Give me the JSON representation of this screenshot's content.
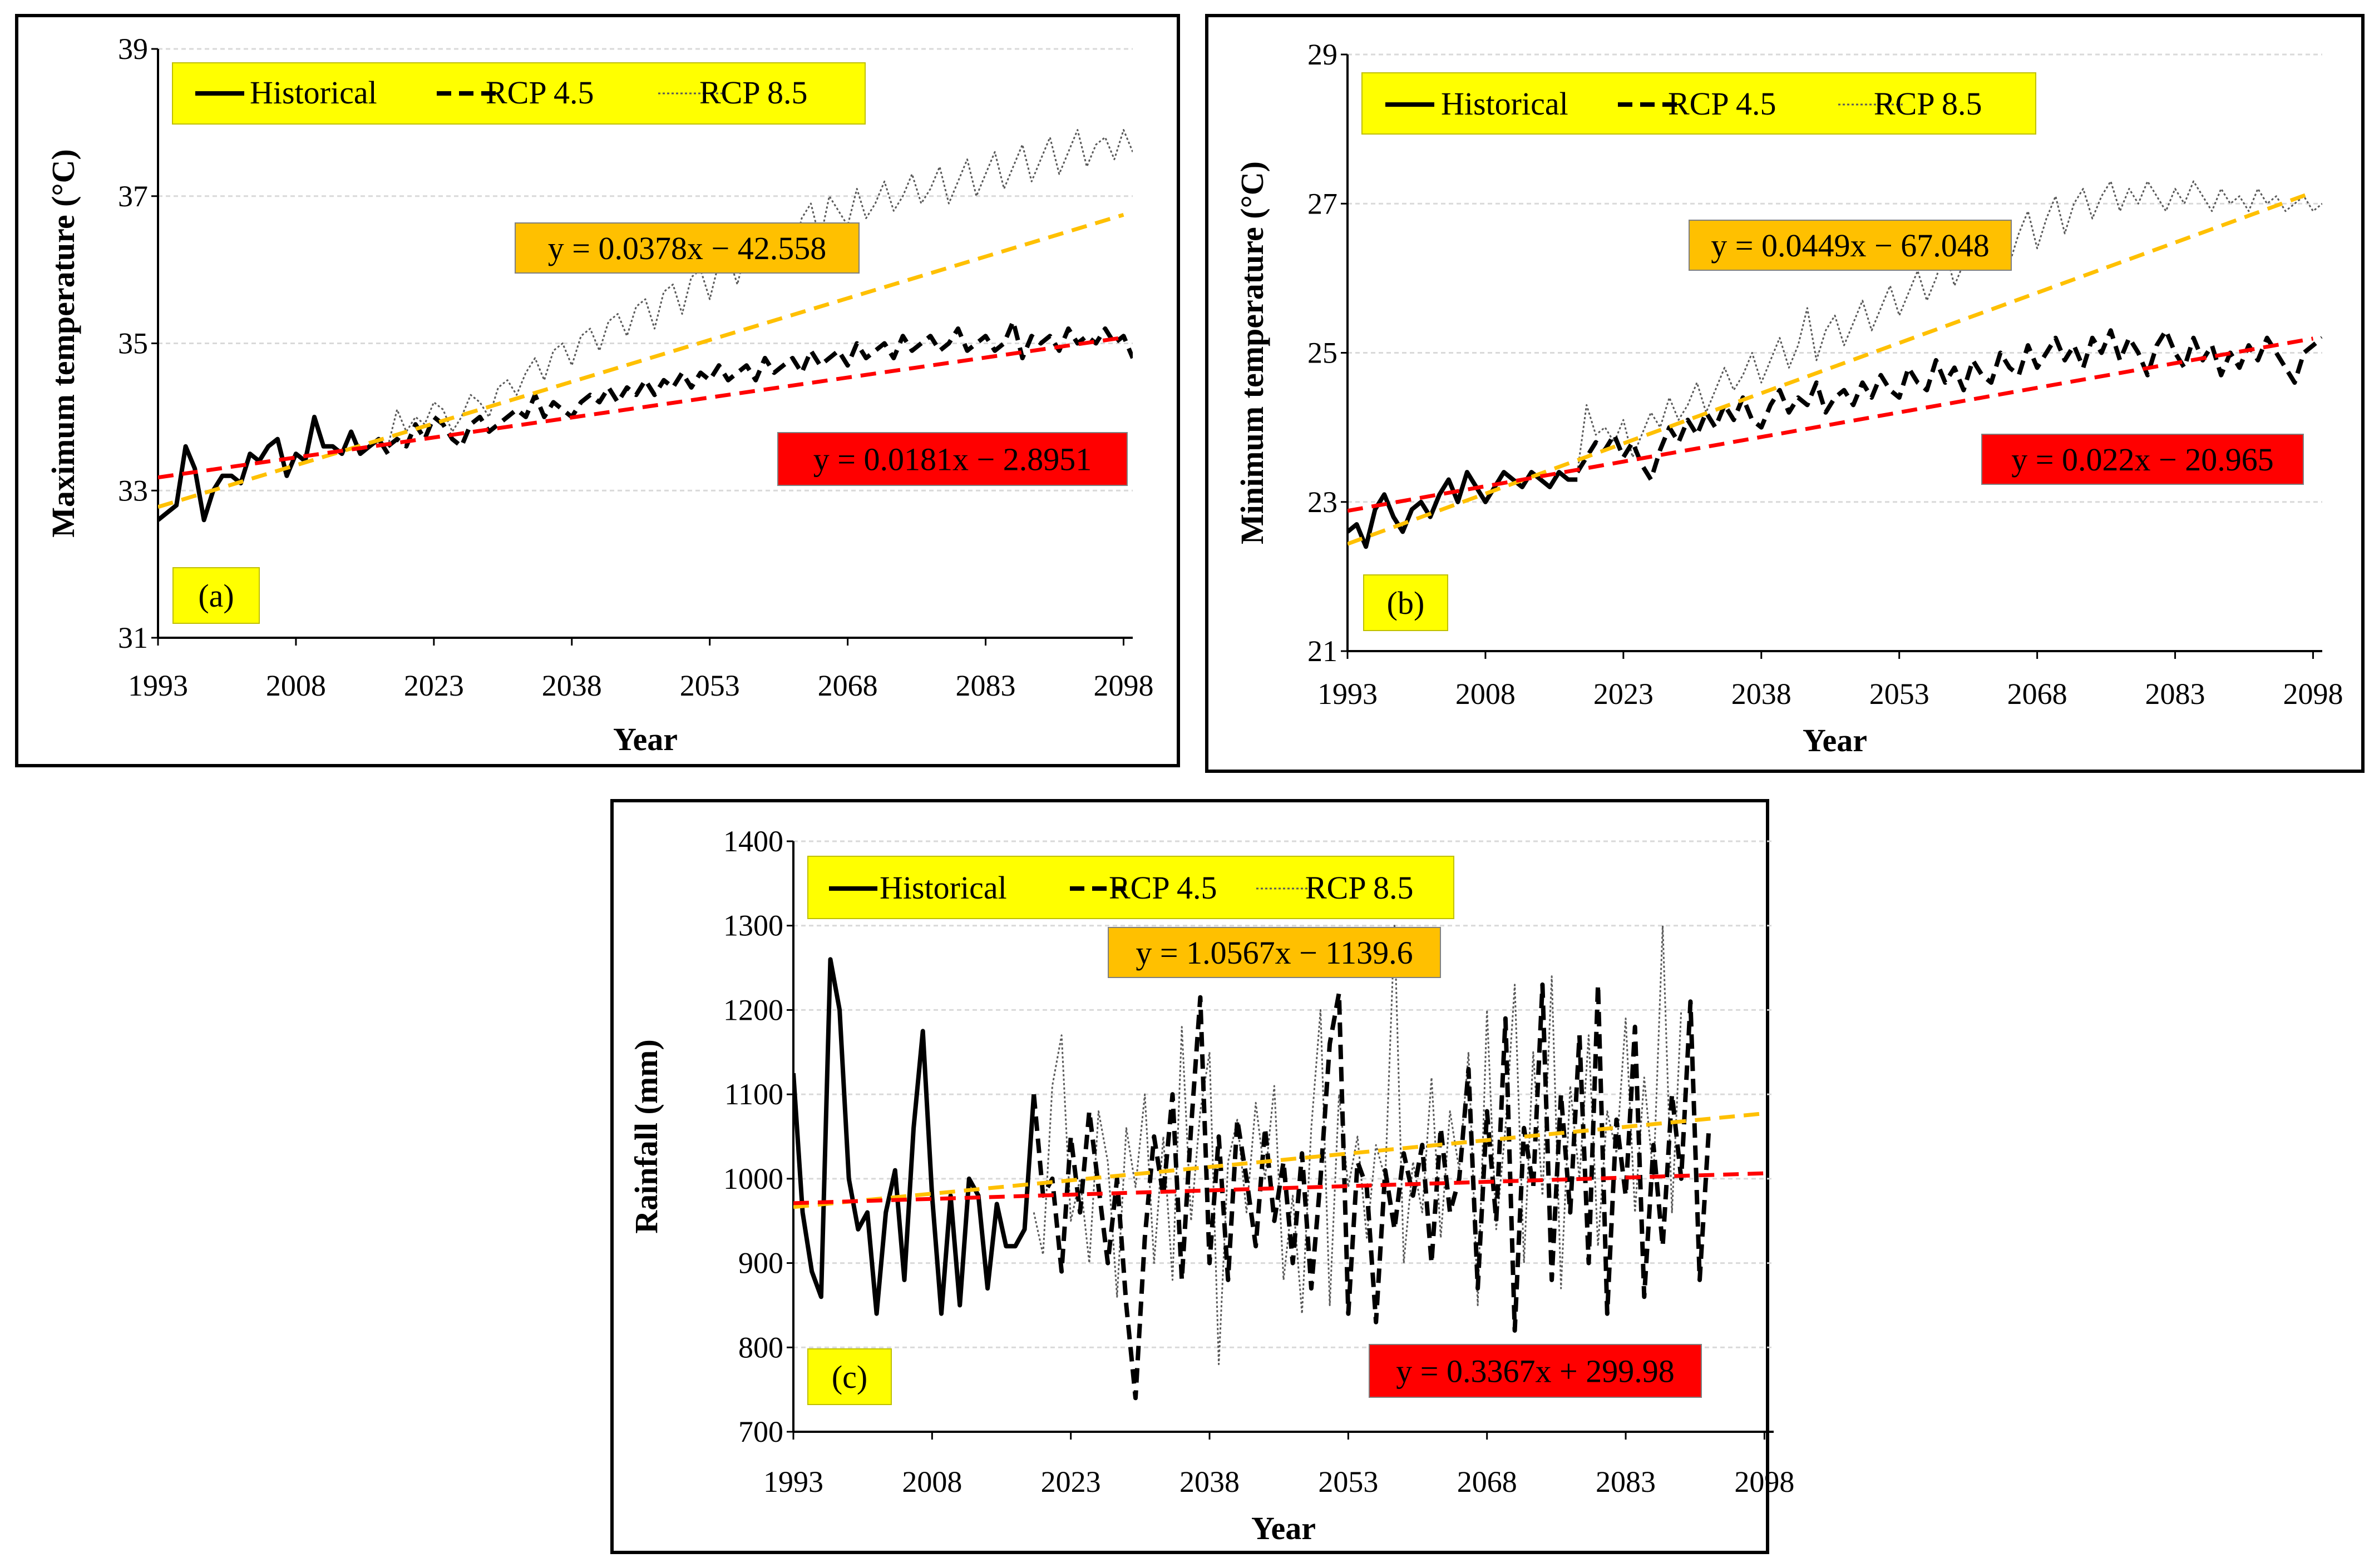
{
  "colors": {
    "legend_bg": "#ffff00",
    "eq_orange_bg": "#ffc000",
    "eq_red_bg": "#ff0000",
    "trend_orange": "#ffc000",
    "trend_red": "#ff0000",
    "grid": "#d9d9d9"
  },
  "legend": {
    "historical": "Historical",
    "rcp45": "RCP 4.5",
    "rcp85": "RCP 8.5"
  },
  "chart_data": [
    {
      "id": "a",
      "type": "line",
      "panel_label": "(a)",
      "xlabel": "Year",
      "ylabel": "Maximum temperature (°C)",
      "xlim": [
        1993,
        2099
      ],
      "ylim": [
        31,
        39
      ],
      "xticks": [
        "1993",
        "2008",
        "2023",
        "2038",
        "2053",
        "2068",
        "2083",
        "2098"
      ],
      "yticks": [
        "31",
        "33",
        "35",
        "37",
        "39"
      ],
      "equation_orange": "y = 0.0378x − 42.558",
      "equation_red": "y = 0.0181x − 2.8951",
      "trend_orange": {
        "slope": 0.0378,
        "intercept": -42.558
      },
      "trend_red": {
        "slope": 0.0181,
        "intercept": -2.8951
      },
      "series": [
        {
          "name": "Historical",
          "start_year": 1993,
          "values": [
            32.6,
            32.7,
            32.8,
            33.6,
            33.3,
            32.6,
            33.0,
            33.2,
            33.2,
            33.1,
            33.5,
            33.4,
            33.6,
            33.7,
            33.2,
            33.5,
            33.4,
            34.0,
            33.6,
            33.6,
            33.5,
            33.8,
            33.5,
            33.6,
            33.7,
            33.5
          ]
        },
        {
          "name": "RCP 4.5",
          "start_year": 2018,
          "values": [
            33.6,
            33.7,
            33.6,
            33.9,
            33.7,
            34.0,
            33.9,
            33.7,
            33.6,
            33.9,
            34.0,
            33.8,
            33.9,
            34.0,
            34.1,
            34.0,
            34.3,
            34.0,
            34.2,
            34.1,
            34.0,
            34.2,
            34.3,
            34.2,
            34.4,
            34.2,
            34.4,
            34.3,
            34.5,
            34.3,
            34.5,
            34.4,
            34.6,
            34.4,
            34.6,
            34.5,
            34.7,
            34.5,
            34.6,
            34.7,
            34.5,
            34.8,
            34.6,
            34.7,
            34.8,
            34.6,
            34.9,
            34.7,
            34.8,
            34.9,
            34.7,
            35.0,
            34.8,
            34.9,
            35.0,
            34.8,
            35.1,
            34.9,
            35.0,
            35.1,
            34.9,
            35.0,
            35.2,
            34.9,
            35.0,
            35.1,
            34.9,
            35.0,
            35.3,
            34.8,
            35.1,
            35.0,
            35.1,
            34.9,
            35.2,
            35.0,
            35.1,
            35.0,
            35.2,
            35.0,
            35.1,
            34.8
          ]
        },
        {
          "name": "RCP 8.5",
          "start_year": 2018,
          "values": [
            33.6,
            34.1,
            33.8,
            34.0,
            33.9,
            34.2,
            34.1,
            33.8,
            34.0,
            34.3,
            34.2,
            34.0,
            34.4,
            34.5,
            34.3,
            34.6,
            34.8,
            34.5,
            34.9,
            35.0,
            34.7,
            35.1,
            35.2,
            34.9,
            35.3,
            35.4,
            35.1,
            35.5,
            35.6,
            35.2,
            35.7,
            35.8,
            35.4,
            35.9,
            36.0,
            35.6,
            36.1,
            36.2,
            35.8,
            36.3,
            36.4,
            36.0,
            36.5,
            36.6,
            36.2,
            36.7,
            36.9,
            36.4,
            37.0,
            36.8,
            36.6,
            37.1,
            36.7,
            36.9,
            37.2,
            36.8,
            37.0,
            37.3,
            36.9,
            37.1,
            37.4,
            36.9,
            37.2,
            37.5,
            37.0,
            37.3,
            37.6,
            37.1,
            37.4,
            37.7,
            37.2,
            37.5,
            37.8,
            37.3,
            37.6,
            37.9,
            37.4,
            37.7,
            37.8,
            37.5,
            37.9,
            37.6
          ]
        }
      ]
    },
    {
      "id": "b",
      "type": "line",
      "panel_label": "(b)",
      "xlabel": "Year",
      "ylabel": "Minimum temperature (°C)",
      "xlim": [
        1993,
        2099
      ],
      "ylim": [
        21,
        29
      ],
      "xticks": [
        "1993",
        "2008",
        "2023",
        "2038",
        "2053",
        "2068",
        "2083",
        "2098"
      ],
      "yticks": [
        "21",
        "23",
        "25",
        "27",
        "29"
      ],
      "equation_orange": "y = 0.0449x − 67.048",
      "equation_red": "y = 0.022x − 20.965",
      "trend_orange": {
        "slope": 0.0449,
        "intercept": -67.048
      },
      "trend_red": {
        "slope": 0.022,
        "intercept": -20.965
      },
      "series": [
        {
          "name": "Historical",
          "start_year": 1993,
          "values": [
            22.6,
            22.7,
            22.4,
            22.9,
            23.1,
            22.8,
            22.6,
            22.9,
            23.0,
            22.8,
            23.1,
            23.3,
            23.0,
            23.4,
            23.2,
            23.0,
            23.2,
            23.4,
            23.3,
            23.2,
            23.4,
            23.3,
            23.2,
            23.4,
            23.3,
            23.3
          ]
        },
        {
          "name": "RCP 4.5",
          "start_year": 2018,
          "values": [
            23.4,
            23.6,
            23.8,
            23.7,
            23.9,
            23.6,
            23.8,
            23.5,
            23.3,
            23.7,
            24.0,
            23.8,
            24.1,
            23.9,
            24.2,
            24.0,
            24.3,
            24.1,
            24.4,
            24.1,
            24.0,
            24.3,
            24.5,
            24.2,
            24.4,
            24.3,
            24.6,
            24.2,
            24.4,
            24.5,
            24.3,
            24.6,
            24.4,
            24.7,
            24.5,
            24.4,
            24.8,
            24.6,
            24.5,
            24.9,
            24.6,
            24.8,
            24.5,
            24.9,
            24.7,
            24.6,
            25.0,
            24.8,
            24.7,
            25.1,
            24.8,
            25.0,
            25.2,
            24.9,
            25.1,
            24.8,
            25.2,
            25.0,
            25.3,
            24.9,
            25.2,
            25.0,
            24.7,
            25.1,
            25.3,
            25.0,
            24.8,
            25.2,
            24.9,
            25.1,
            24.7,
            25.0,
            24.8,
            25.1,
            24.9,
            25.2,
            25.0,
            24.8,
            24.6,
            25.0,
            25.1,
            25.2
          ]
        },
        {
          "name": "RCP 8.5",
          "start_year": 2018,
          "values": [
            23.4,
            24.3,
            23.9,
            24.0,
            23.8,
            24.1,
            23.6,
            23.9,
            24.2,
            24.0,
            24.4,
            24.1,
            24.3,
            24.6,
            24.2,
            24.5,
            24.8,
            24.5,
            24.7,
            25.0,
            24.6,
            24.9,
            25.2,
            24.8,
            25.1,
            25.6,
            24.9,
            25.3,
            25.5,
            25.1,
            25.4,
            25.7,
            25.3,
            25.6,
            25.9,
            25.5,
            25.8,
            26.1,
            25.7,
            26.0,
            26.4,
            25.9,
            26.2,
            26.5,
            26.1,
            26.4,
            26.7,
            26.2,
            26.6,
            26.9,
            26.4,
            26.8,
            27.1,
            26.6,
            27.0,
            27.2,
            26.8,
            27.1,
            27.3,
            26.9,
            27.2,
            27.0,
            27.3,
            27.1,
            26.9,
            27.2,
            27.0,
            27.3,
            27.1,
            26.9,
            27.2,
            27.0,
            27.1,
            26.9,
            27.2,
            27.0,
            27.1,
            26.9,
            27.0,
            27.1,
            26.9,
            27.0
          ]
        }
      ]
    },
    {
      "id": "c",
      "type": "line",
      "panel_label": "(c)",
      "xlabel": "Year",
      "ylabel": "Rainfall (mm)",
      "xlim": [
        1993,
        2099
      ],
      "ylim": [
        700,
        1400
      ],
      "xticks": [
        "1993",
        "2008",
        "2023",
        "2038",
        "2053",
        "2068",
        "2083",
        "2098"
      ],
      "yticks": [
        "700",
        "800",
        "900",
        "1000",
        "1100",
        "1200",
        "1300",
        "1400"
      ],
      "equation_orange": "y = 1.0567x − 1139.6",
      "equation_red": "y = 0.3367x + 299.98",
      "trend_orange": {
        "slope": 1.0567,
        "intercept": -1139.6
      },
      "trend_red": {
        "slope": 0.3367,
        "intercept": 299.98
      },
      "series": [
        {
          "name": "Historical",
          "start_year": 1993,
          "values": [
            1125,
            960,
            890,
            860,
            1260,
            1200,
            1000,
            940,
            960,
            840,
            960,
            1010,
            880,
            1060,
            1175,
            980,
            840,
            980,
            850,
            1000,
            980,
            870,
            970,
            920,
            920,
            940,
            1100
          ]
        },
        {
          "name": "RCP 4.5",
          "start_year": 2019,
          "values": [
            1100,
            980,
            1000,
            890,
            1050,
            960,
            1080,
            990,
            900,
            1000,
            850,
            740,
            930,
            1050,
            980,
            1100,
            880,
            1060,
            1215,
            900,
            1050,
            880,
            1070,
            1000,
            920,
            1060,
            950,
            1020,
            900,
            1030,
            870,
            1000,
            1160,
            1220,
            840,
            1020,
            990,
            830,
            1010,
            940,
            1030,
            980,
            1040,
            900,
            1060,
            960,
            1000,
            1130,
            870,
            1080,
            950,
            1190,
            820,
            1060,
            990,
            1230,
            880,
            1100,
            960,
            1170,
            900,
            1230,
            840,
            1070,
            980,
            1180,
            860,
            1040,
            920,
            1100,
            1000,
            1210,
            880,
            1060
          ]
        },
        {
          "name": "RCP 8.5",
          "start_year": 2019,
          "values": [
            960,
            910,
            1110,
            1170,
            950,
            1000,
            900,
            1080,
            1020,
            860,
            1060,
            990,
            1100,
            900,
            1050,
            880,
            1180,
            950,
            1080,
            1150,
            780,
            1020,
            1070,
            960,
            1090,
            1000,
            1110,
            880,
            980,
            840,
            1060,
            1200,
            850,
            1100,
            990,
            1050,
            930,
            1040,
            1000,
            1300,
            900,
            1020,
            960,
            1120,
            930,
            1080,
            1010,
            1150,
            850,
            1200,
            940,
            1060,
            1230,
            900,
            1150,
            980,
            1240,
            870,
            1110,
            1000,
            1170,
            920,
            1080,
            1030,
            1190,
            960,
            1120,
            1000,
            1300,
            960,
            1200
          ]
        }
      ]
    }
  ]
}
